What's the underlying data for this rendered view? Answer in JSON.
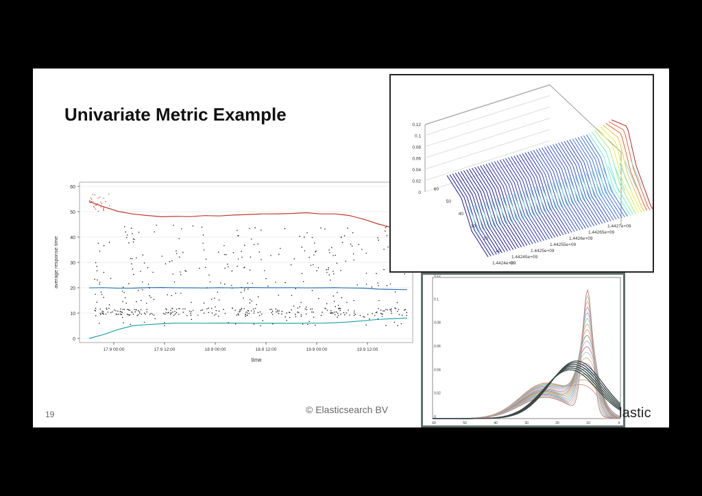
{
  "slide": {
    "title": "Univariate Metric Example",
    "page_number": "19",
    "copyright": "© Elasticsearch BV",
    "brand": "lastic"
  },
  "chart_data": [
    {
      "type": "scatter",
      "xlabel": "time",
      "ylabel": "average response time",
      "ylim": [
        0,
        60
      ],
      "yticks": [
        "0",
        "10",
        "20",
        "30",
        "40",
        "50",
        "60"
      ],
      "xticks": [
        "17.9 00:00",
        "17.9 12:00",
        "18.9 00:00",
        "18.9 12:00",
        "19.9 00:00",
        "19.9 12:00"
      ],
      "series": [
        {
          "role": "upper bound",
          "color": "#c0392b",
          "values": [
            54,
            52,
            50,
            49,
            48.5,
            48,
            48,
            48.2,
            48.5,
            48.3,
            48.6,
            49,
            49.2,
            49,
            49.3,
            49.5,
            49.2,
            49,
            48.5,
            47,
            45,
            43.5,
            43
          ]
        },
        {
          "role": "model mean",
          "color": "#2e6fb5",
          "values": [
            20,
            20,
            19.8,
            19.9,
            20,
            20.1,
            20,
            20,
            19.9,
            20,
            20,
            20.1,
            20,
            20,
            20,
            19.9,
            20,
            20,
            19.9,
            19.8,
            19.5,
            19.3,
            19.3
          ]
        },
        {
          "role": "lower bound",
          "color": "#1fa4a8",
          "values": [
            0,
            1.5,
            3.5,
            5,
            5.5,
            5.8,
            6,
            6,
            6,
            6,
            6,
            6,
            6,
            6,
            6,
            6,
            6,
            6.2,
            6.5,
            7,
            7.5,
            7.8,
            8
          ]
        },
        {
          "role": "observations",
          "color": "#222222",
          "points": "scattered between 5 and 45"
        }
      ]
    },
    {
      "type": "surface",
      "zticks": [
        "0",
        "0.02",
        "0.04",
        "0.06",
        "0.08",
        "0.1",
        "0.12"
      ],
      "yticks": [
        "0",
        "10",
        "20",
        "30",
        "40",
        "50",
        "60"
      ],
      "xticks": [
        "1.4424e+09",
        "1.44245e+09",
        "1.4425e+09",
        "1.44255e+09",
        "1.4426e+09",
        "1.44265e+09",
        "1.4427e+09"
      ]
    },
    {
      "type": "line",
      "ylim": [
        0,
        0.12
      ],
      "yticks": [
        "0",
        "0.02",
        "0.04",
        "0.06",
        "0.08",
        "0.1",
        "0.12"
      ],
      "xticks": [
        "60",
        "50",
        "40",
        "30",
        "20",
        "10",
        "0"
      ]
    }
  ]
}
